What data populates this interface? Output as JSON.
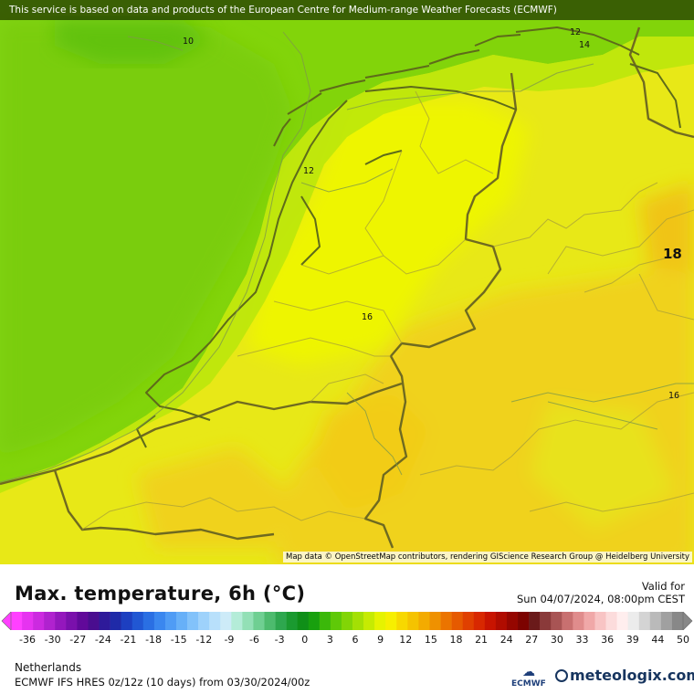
{
  "map": {
    "attribution_banner": "This service is based on data and products of the European Centre for Medium-range Weather Forecasts (ECMWF)",
    "credit": "Map data © OpenStreetMap contributors, rendering GIScience Research Group @ Heidelberg University",
    "contour_labels": [
      "10",
      "12",
      "14",
      "12",
      "16",
      "16",
      "18"
    ]
  },
  "legend": {
    "title": "Max. temperature, 6h (°C)",
    "valid_label": "Valid for",
    "valid_time": "Sun 04/07/2024, 08:00pm CEST",
    "ticks": [
      "-36",
      "-30",
      "-27",
      "-24",
      "-21",
      "-18",
      "-15",
      "-12",
      "-9",
      "-6",
      "-3",
      "0",
      "3",
      "6",
      "9",
      "12",
      "15",
      "18",
      "21",
      "24",
      "27",
      "30",
      "33",
      "36",
      "39",
      "44",
      "50"
    ],
    "colors": [
      "#ff40ff",
      "#e633f0",
      "#cc2ae0",
      "#b022cf",
      "#9417bd",
      "#7a10ac",
      "#61099a",
      "#4a0d8f",
      "#2e1a9a",
      "#1f2aa8",
      "#1d3fc0",
      "#2157d3",
      "#2a6fe3",
      "#3a87ef",
      "#4f9cf5",
      "#67b0f8",
      "#82c2fa",
      "#9ed2fb",
      "#b8e0fb",
      "#cdebf8",
      "#b4ecd8",
      "#93e0b6",
      "#6fcf92",
      "#4dbb6e",
      "#2ea74f",
      "#1a9a30",
      "#0f8f18",
      "#18a00e",
      "#3bb80a",
      "#5fc908",
      "#82d506",
      "#a4e004",
      "#c6eb02",
      "#e6f300",
      "#f7ef00",
      "#f7d800",
      "#f5c300",
      "#f3ab00",
      "#ef9100",
      "#eb7400",
      "#e65a00",
      "#e04000",
      "#d82800",
      "#c81400",
      "#b00c00",
      "#950600",
      "#7c0300",
      "#6a1a1a",
      "#8a3a3a",
      "#a85454",
      "#c87070",
      "#e08c8c",
      "#f0a8a8",
      "#f8c4c4",
      "#fcdcdc",
      "#ffeeee",
      "#ececec",
      "#d4d4d4",
      "#bababa",
      "#a0a0a0",
      "#888888"
    ]
  },
  "footer": {
    "region": "Netherlands",
    "model_run": "ECMWF IFS HRES 0z/12z (10 days) from  03/30/2024/00z",
    "ecmwf_label": "ECMWF",
    "brand": "meteologix.com"
  }
}
